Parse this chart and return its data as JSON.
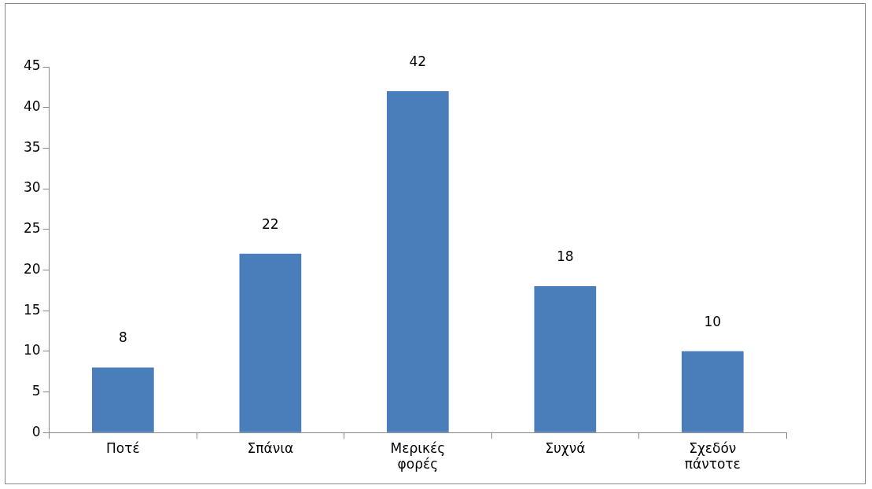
{
  "chart_data": {
    "type": "bar",
    "categories": [
      "Ποτέ",
      "Σπάνια",
      "Μερικές φορές",
      "Συχνά",
      "Σχεδόν πάντοτε"
    ],
    "values": [
      8,
      22,
      42,
      18,
      10
    ],
    "color": "#4a7ebb",
    "ylim": [
      0,
      45
    ],
    "yticks": [
      0,
      5,
      10,
      15,
      20,
      25,
      30,
      35,
      40,
      45
    ],
    "grid": false,
    "legend": false,
    "data_labels": true
  }
}
